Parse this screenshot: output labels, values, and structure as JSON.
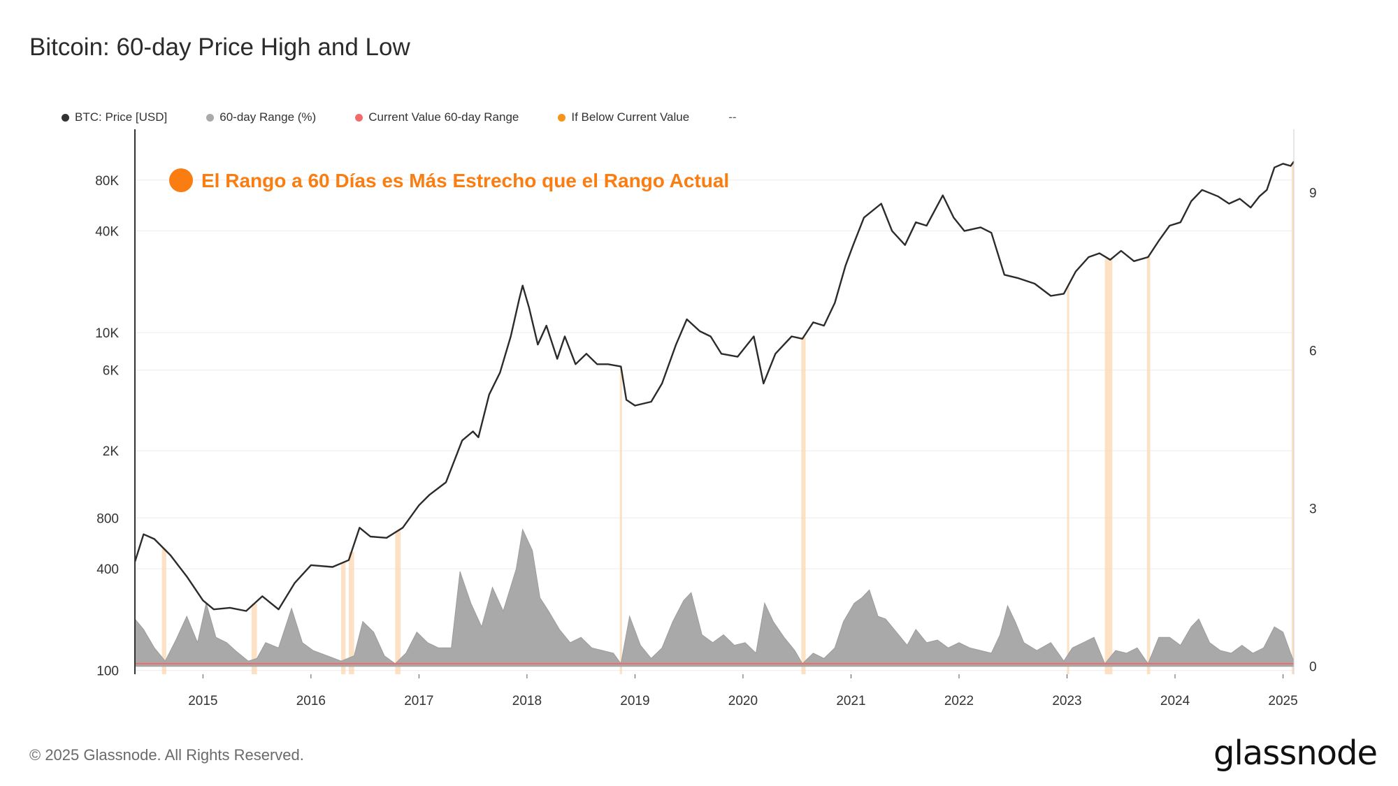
{
  "title": "Bitcoin: 60-day Price High and Low",
  "legend": [
    {
      "label": "BTC: Price [USD]",
      "color": "#333333"
    },
    {
      "label": "60-day Range (%)",
      "color": "#aaaaaa"
    },
    {
      "label": "Current Value 60-day Range",
      "color": "#f26b6b"
    },
    {
      "label": "If Below Current Value",
      "color": "#f7931a"
    }
  ],
  "legend_extra": "--",
  "footer": "© 2025 Glassnode. All Rights Reserved.",
  "brand": "glassnode",
  "chart_data": {
    "type": "line",
    "annotation": "El Rango a 60 Días es Más Estrecho que el Rango Actual",
    "annotation_color": "#f97d10",
    "x_ticks": [
      "2015",
      "2016",
      "2017",
      "2018",
      "2019",
      "2020",
      "2021",
      "2022",
      "2023",
      "2024",
      "2025"
    ],
    "x_range": [
      2014.37,
      2025.1
    ],
    "y_left_ticks": [
      {
        "label": "80K",
        "value": 80000
      },
      {
        "label": "40K",
        "value": 40000
      },
      {
        "label": "10K",
        "value": 10000
      },
      {
        "label": "6K",
        "value": 6000
      },
      {
        "label": "2K",
        "value": 2000
      },
      {
        "label": "800",
        "value": 800
      },
      {
        "label": "400",
        "value": 400
      },
      {
        "label": "100",
        "value": 100
      }
    ],
    "y_left_scale": "log",
    "y_left_range": [
      95,
      160000
    ],
    "y_right_ticks": [
      {
        "label": "9",
        "value": 9
      },
      {
        "label": "6",
        "value": 6
      },
      {
        "label": "3",
        "value": 3
      },
      {
        "label": "0",
        "value": 0
      }
    ],
    "y_right_range": [
      -0.15,
      10.2
    ],
    "series": [
      {
        "name": "BTC: Price [USD]",
        "color": "#2b2b2b",
        "points": [
          [
            2014.37,
            440
          ],
          [
            2014.45,
            640
          ],
          [
            2014.55,
            600
          ],
          [
            2014.7,
            480
          ],
          [
            2014.85,
            360
          ],
          [
            2015.0,
            260
          ],
          [
            2015.1,
            230
          ],
          [
            2015.25,
            235
          ],
          [
            2015.4,
            225
          ],
          [
            2015.55,
            275
          ],
          [
            2015.7,
            230
          ],
          [
            2015.85,
            330
          ],
          [
            2016.0,
            420
          ],
          [
            2016.2,
            410
          ],
          [
            2016.35,
            450
          ],
          [
            2016.45,
            700
          ],
          [
            2016.55,
            620
          ],
          [
            2016.7,
            610
          ],
          [
            2016.85,
            700
          ],
          [
            2017.0,
            950
          ],
          [
            2017.1,
            1100
          ],
          [
            2017.25,
            1300
          ],
          [
            2017.4,
            2300
          ],
          [
            2017.5,
            2600
          ],
          [
            2017.55,
            2400
          ],
          [
            2017.65,
            4300
          ],
          [
            2017.75,
            5800
          ],
          [
            2017.85,
            9500
          ],
          [
            2017.93,
            16000
          ],
          [
            2017.96,
            19000
          ],
          [
            2018.02,
            14000
          ],
          [
            2018.1,
            8500
          ],
          [
            2018.18,
            11000
          ],
          [
            2018.28,
            7000
          ],
          [
            2018.35,
            9500
          ],
          [
            2018.45,
            6500
          ],
          [
            2018.55,
            7500
          ],
          [
            2018.65,
            6500
          ],
          [
            2018.75,
            6500
          ],
          [
            2018.87,
            6300
          ],
          [
            2018.92,
            4000
          ],
          [
            2019.0,
            3700
          ],
          [
            2019.15,
            3900
          ],
          [
            2019.25,
            5000
          ],
          [
            2019.38,
            8500
          ],
          [
            2019.48,
            12000
          ],
          [
            2019.6,
            10200
          ],
          [
            2019.7,
            9500
          ],
          [
            2019.8,
            7500
          ],
          [
            2019.95,
            7200
          ],
          [
            2020.1,
            9500
          ],
          [
            2020.19,
            5000
          ],
          [
            2020.3,
            7500
          ],
          [
            2020.45,
            9500
          ],
          [
            2020.55,
            9200
          ],
          [
            2020.65,
            11500
          ],
          [
            2020.75,
            11000
          ],
          [
            2020.85,
            15000
          ],
          [
            2020.95,
            25000
          ],
          [
            2021.02,
            33000
          ],
          [
            2021.12,
            48000
          ],
          [
            2021.28,
            58000
          ],
          [
            2021.38,
            40000
          ],
          [
            2021.5,
            33000
          ],
          [
            2021.6,
            45000
          ],
          [
            2021.7,
            43000
          ],
          [
            2021.85,
            65000
          ],
          [
            2021.95,
            48000
          ],
          [
            2022.05,
            40000
          ],
          [
            2022.2,
            42000
          ],
          [
            2022.3,
            39000
          ],
          [
            2022.42,
            22000
          ],
          [
            2022.55,
            21000
          ],
          [
            2022.7,
            19500
          ],
          [
            2022.85,
            16500
          ],
          [
            2022.97,
            17000
          ],
          [
            2023.08,
            23000
          ],
          [
            2023.2,
            28000
          ],
          [
            2023.3,
            29500
          ],
          [
            2023.4,
            27000
          ],
          [
            2023.5,
            30500
          ],
          [
            2023.62,
            26500
          ],
          [
            2023.75,
            28000
          ],
          [
            2023.85,
            35000
          ],
          [
            2023.95,
            43000
          ],
          [
            2024.05,
            45000
          ],
          [
            2024.15,
            60000
          ],
          [
            2024.25,
            70000
          ],
          [
            2024.4,
            64000
          ],
          [
            2024.5,
            58000
          ],
          [
            2024.6,
            62000
          ],
          [
            2024.7,
            55000
          ],
          [
            2024.78,
            64000
          ],
          [
            2024.85,
            70000
          ],
          [
            2024.92,
            95000
          ],
          [
            2025.0,
            100000
          ],
          [
            2025.07,
            97000
          ],
          [
            2025.1,
            103000
          ]
        ]
      },
      {
        "name": "60-day Range (%)",
        "color": "#a9a9a9",
        "axis": "right",
        "points": [
          [
            2014.37,
            0.9
          ],
          [
            2014.45,
            0.7
          ],
          [
            2014.55,
            0.35
          ],
          [
            2014.65,
            0.1
          ],
          [
            2014.75,
            0.5
          ],
          [
            2014.85,
            0.95
          ],
          [
            2014.95,
            0.45
          ],
          [
            2015.03,
            1.2
          ],
          [
            2015.12,
            0.55
          ],
          [
            2015.22,
            0.45
          ],
          [
            2015.3,
            0.3
          ],
          [
            2015.42,
            0.1
          ],
          [
            2015.5,
            0.15
          ],
          [
            2015.58,
            0.45
          ],
          [
            2015.7,
            0.35
          ],
          [
            2015.82,
            1.1
          ],
          [
            2015.92,
            0.45
          ],
          [
            2016.02,
            0.3
          ],
          [
            2016.15,
            0.2
          ],
          [
            2016.28,
            0.1
          ],
          [
            2016.4,
            0.2
          ],
          [
            2016.48,
            0.85
          ],
          [
            2016.58,
            0.65
          ],
          [
            2016.68,
            0.2
          ],
          [
            2016.78,
            0.05
          ],
          [
            2016.88,
            0.25
          ],
          [
            2016.98,
            0.65
          ],
          [
            2017.08,
            0.45
          ],
          [
            2017.18,
            0.35
          ],
          [
            2017.3,
            0.35
          ],
          [
            2017.38,
            1.8
          ],
          [
            2017.48,
            1.2
          ],
          [
            2017.58,
            0.75
          ],
          [
            2017.68,
            1.5
          ],
          [
            2017.78,
            1.05
          ],
          [
            2017.9,
            1.85
          ],
          [
            2017.96,
            2.6
          ],
          [
            2018.05,
            2.2
          ],
          [
            2018.12,
            1.3
          ],
          [
            2018.2,
            1.05
          ],
          [
            2018.3,
            0.7
          ],
          [
            2018.4,
            0.45
          ],
          [
            2018.5,
            0.55
          ],
          [
            2018.6,
            0.35
          ],
          [
            2018.7,
            0.3
          ],
          [
            2018.8,
            0.25
          ],
          [
            2018.87,
            0.05
          ],
          [
            2018.95,
            0.95
          ],
          [
            2019.05,
            0.4
          ],
          [
            2019.15,
            0.15
          ],
          [
            2019.25,
            0.35
          ],
          [
            2019.35,
            0.85
          ],
          [
            2019.45,
            1.25
          ],
          [
            2019.52,
            1.4
          ],
          [
            2019.62,
            0.6
          ],
          [
            2019.72,
            0.45
          ],
          [
            2019.82,
            0.6
          ],
          [
            2019.92,
            0.4
          ],
          [
            2020.02,
            0.45
          ],
          [
            2020.12,
            0.25
          ],
          [
            2020.2,
            1.2
          ],
          [
            2020.28,
            0.85
          ],
          [
            2020.38,
            0.55
          ],
          [
            2020.48,
            0.3
          ],
          [
            2020.55,
            0.05
          ],
          [
            2020.65,
            0.25
          ],
          [
            2020.75,
            0.15
          ],
          [
            2020.85,
            0.35
          ],
          [
            2020.93,
            0.85
          ],
          [
            2021.03,
            1.2
          ],
          [
            2021.1,
            1.3
          ],
          [
            2021.17,
            1.45
          ],
          [
            2021.25,
            0.95
          ],
          [
            2021.32,
            0.9
          ],
          [
            2021.42,
            0.65
          ],
          [
            2021.52,
            0.4
          ],
          [
            2021.6,
            0.7
          ],
          [
            2021.7,
            0.45
          ],
          [
            2021.8,
            0.5
          ],
          [
            2021.9,
            0.35
          ],
          [
            2022.0,
            0.45
          ],
          [
            2022.1,
            0.35
          ],
          [
            2022.2,
            0.3
          ],
          [
            2022.3,
            0.25
          ],
          [
            2022.38,
            0.6
          ],
          [
            2022.45,
            1.15
          ],
          [
            2022.52,
            0.85
          ],
          [
            2022.6,
            0.45
          ],
          [
            2022.72,
            0.3
          ],
          [
            2022.85,
            0.45
          ],
          [
            2022.97,
            0.1
          ],
          [
            2023.05,
            0.35
          ],
          [
            2023.15,
            0.45
          ],
          [
            2023.25,
            0.55
          ],
          [
            2023.35,
            0.05
          ],
          [
            2023.45,
            0.3
          ],
          [
            2023.55,
            0.25
          ],
          [
            2023.65,
            0.35
          ],
          [
            2023.75,
            0.05
          ],
          [
            2023.85,
            0.55
          ],
          [
            2023.95,
            0.55
          ],
          [
            2024.05,
            0.4
          ],
          [
            2024.15,
            0.75
          ],
          [
            2024.22,
            0.9
          ],
          [
            2024.32,
            0.45
          ],
          [
            2024.42,
            0.3
          ],
          [
            2024.52,
            0.25
          ],
          [
            2024.62,
            0.4
          ],
          [
            2024.72,
            0.25
          ],
          [
            2024.82,
            0.35
          ],
          [
            2024.92,
            0.75
          ],
          [
            2025.0,
            0.65
          ],
          [
            2025.07,
            0.25
          ],
          [
            2025.1,
            0.1
          ]
        ]
      }
    ],
    "current_value_line": {
      "value": 0.05,
      "color": "#f26b6b"
    },
    "highlight_periods": [
      [
        2014.62,
        2014.66
      ],
      [
        2015.45,
        2015.5
      ],
      [
        2016.28,
        2016.32
      ],
      [
        2016.35,
        2016.4
      ],
      [
        2016.78,
        2016.83
      ],
      [
        2018.86,
        2018.88
      ],
      [
        2020.54,
        2020.58
      ],
      [
        2023.0,
        2023.02
      ],
      [
        2023.35,
        2023.42
      ],
      [
        2023.74,
        2023.77
      ],
      [
        2025.08,
        2025.1
      ]
    ]
  }
}
